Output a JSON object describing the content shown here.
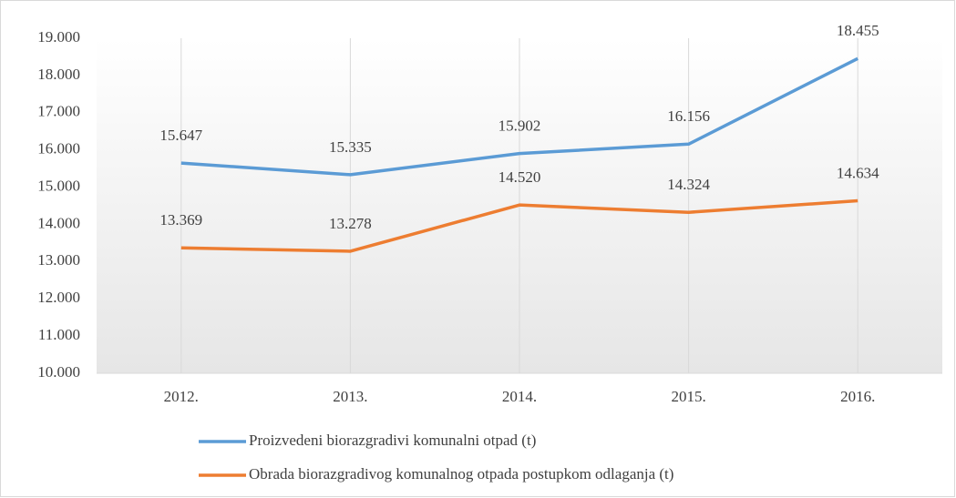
{
  "chart_data": {
    "type": "line",
    "categories": [
      "2012.",
      "2013.",
      "2014.",
      "2015.",
      "2016."
    ],
    "series": [
      {
        "name": "Proizvedeni biorazgradivi komunalni otpad (t)",
        "color": "#5b9bd5",
        "values": [
          15647,
          15335,
          15902,
          16156,
          18455
        ],
        "value_labels": [
          "15.647",
          "15.335",
          "15.902",
          "16.156",
          "18.455"
        ]
      },
      {
        "name": "Obrada biorazgradivog komunalnog otpada postupkom odlaganja (t)",
        "color": "#ed7d31",
        "values": [
          13369,
          13278,
          14520,
          14324,
          14634
        ],
        "value_labels": [
          "13.369",
          "13.278",
          "14.520",
          "14.324",
          "14.634"
        ]
      }
    ],
    "ylim": [
      10000,
      19000
    ],
    "yticks": [
      {
        "value": 10000,
        "label": "10.000"
      },
      {
        "value": 11000,
        "label": "11.000"
      },
      {
        "value": 12000,
        "label": "12.000"
      },
      {
        "value": 13000,
        "label": "13.000"
      },
      {
        "value": 14000,
        "label": "14.000"
      },
      {
        "value": 15000,
        "label": "15.000"
      },
      {
        "value": 16000,
        "label": "16.000"
      },
      {
        "value": 17000,
        "label": "17.000"
      },
      {
        "value": 18000,
        "label": "18.000"
      },
      {
        "value": 19000,
        "label": "19.000"
      }
    ],
    "grid": true,
    "legend": "bottom"
  }
}
